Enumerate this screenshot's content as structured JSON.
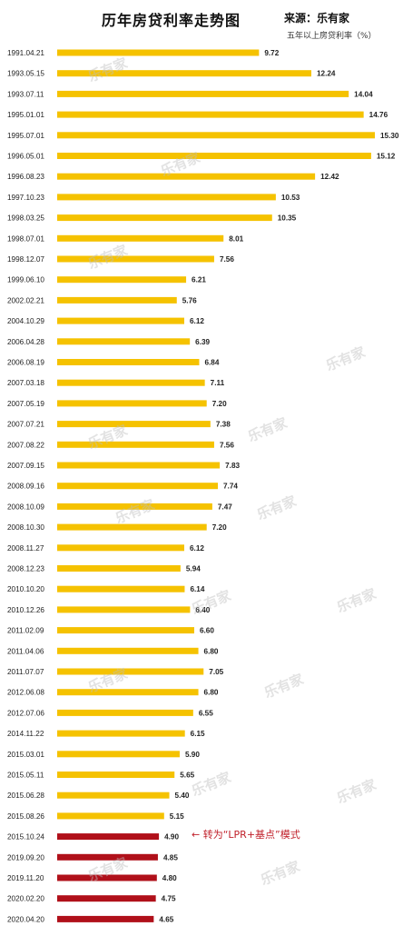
{
  "header": {
    "title": "历年房贷利率走势图",
    "source": "来源：乐有家",
    "unit_note": "五年以上房贷利率（%）"
  },
  "watermark": "乐有家",
  "annotation": {
    "arrow": "←",
    "text": "转为“LPR+基点”模式"
  },
  "colors": {
    "bar_fixed": "#f5c200",
    "bar_lpr": "#b0101a",
    "annotation": "#c0202a"
  },
  "chart_data": {
    "type": "bar",
    "orientation": "horizontal",
    "title": "历年房贷利率走势图",
    "ylabel": "五年以上房贷利率（%）",
    "xlim": [
      0,
      15.3
    ],
    "grid": false,
    "legend": "none",
    "categories": [
      "1991.04.21",
      "1993.05.15",
      "1993.07.11",
      "1995.01.01",
      "1995.07.01",
      "1996.05.01",
      "1996.08.23",
      "1997.10.23",
      "1998.03.25",
      "1998.07.01",
      "1998.12.07",
      "1999.06.10",
      "2002.02.21",
      "2004.10.29",
      "2006.04.28",
      "2006.08.19",
      "2007.03.18",
      "2007.05.19",
      "2007.07.21",
      "2007.08.22",
      "2007.09.15",
      "2008.09.16",
      "2008.10.09",
      "2008.10.30",
      "2008.11.27",
      "2008.12.23",
      "2010.10.20",
      "2010.12.26",
      "2011.02.09",
      "2011.04.06",
      "2011.07.07",
      "2012.06.08",
      "2012.07.06",
      "2014.11.22",
      "2015.03.01",
      "2015.05.11",
      "2015.06.28",
      "2015.08.26",
      "2015.10.24",
      "2019.09.20",
      "2019.11.20",
      "2020.02.20",
      "2020.04.20"
    ],
    "values": [
      9.72,
      12.24,
      14.04,
      14.76,
      15.3,
      15.12,
      12.42,
      10.53,
      10.35,
      8.01,
      7.56,
      6.21,
      5.76,
      6.12,
      6.39,
      6.84,
      7.11,
      7.2,
      7.38,
      7.56,
      7.83,
      7.74,
      7.47,
      7.2,
      6.12,
      5.94,
      6.14,
      6.4,
      6.6,
      6.8,
      7.05,
      6.8,
      6.55,
      6.15,
      5.9,
      5.65,
      5.4,
      5.15,
      4.9,
      4.85,
      4.8,
      4.75,
      4.65
    ],
    "value_labels": [
      "9.72",
      "12.24",
      "14.04",
      "14.76",
      "15.30",
      "15.12",
      "12.42",
      "10.53",
      "10.35",
      "8.01",
      "7.56",
      "6.21",
      "5.76",
      "6.12",
      "6.39",
      "6.84",
      "7.11",
      "7.20",
      "7.38",
      "7.56",
      "7.83",
      "7.74",
      "7.47",
      "7.20",
      "6.12",
      "5.94",
      "6.14",
      "6.40",
      "6.60",
      "6.80",
      "7.05",
      "6.80",
      "6.55",
      "6.15",
      "5.90",
      "5.65",
      "5.40",
      "5.15",
      "4.90",
      "4.85",
      "4.80",
      "4.75",
      "4.65"
    ],
    "lpr_start_index": 38
  }
}
